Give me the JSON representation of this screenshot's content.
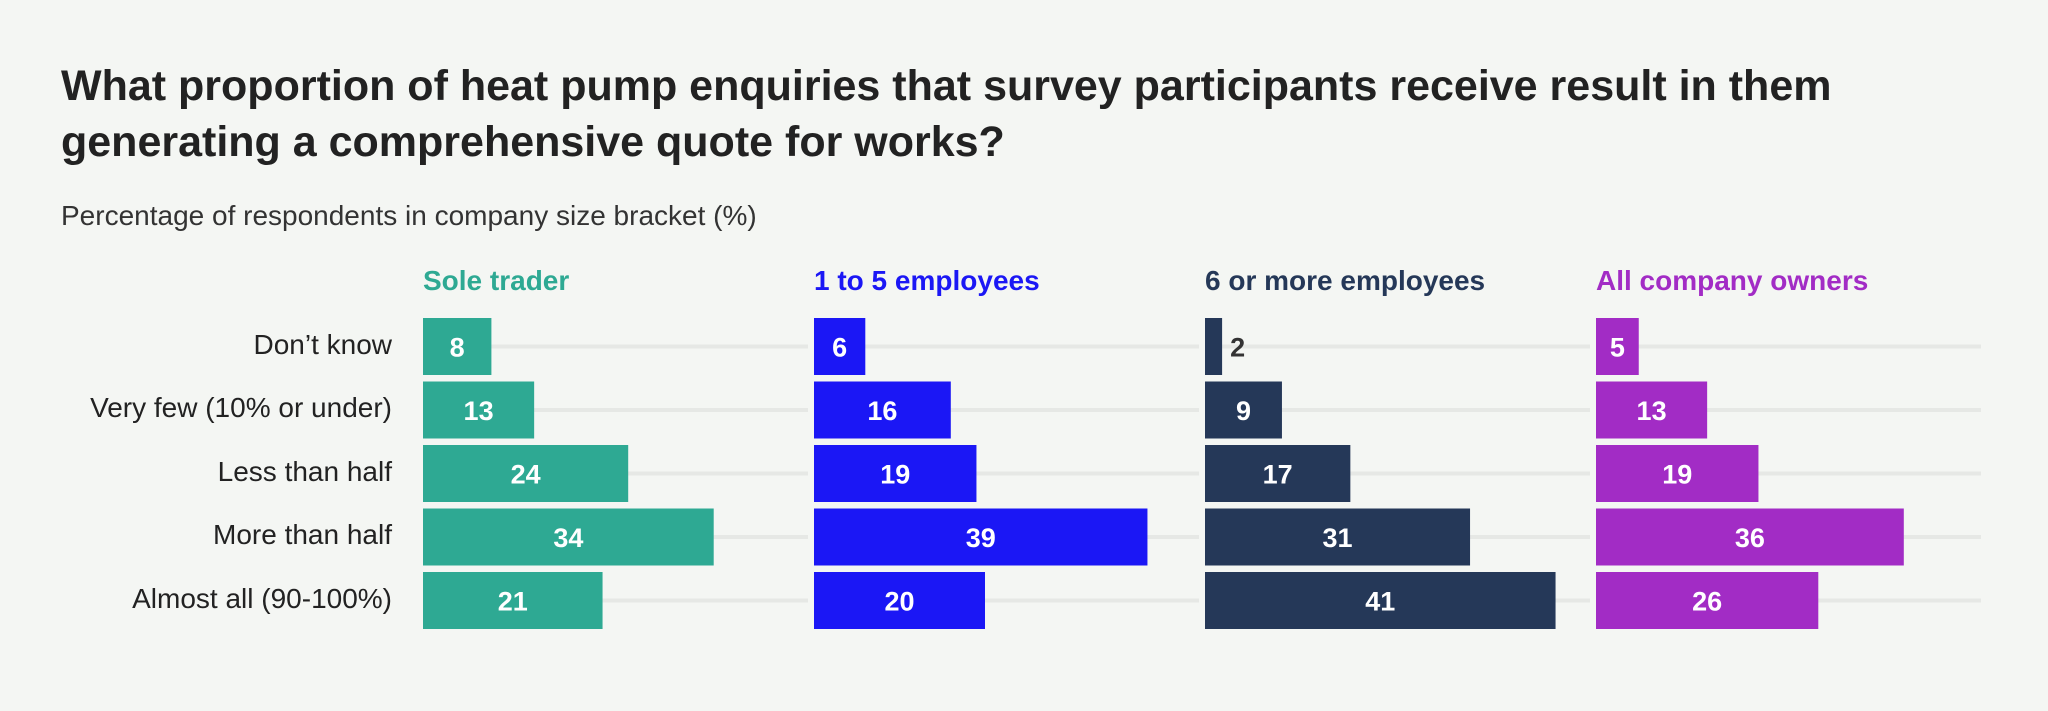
{
  "chart_data": {
    "type": "bar",
    "title": "What proportion of heat pump enquiries that survey participants receive result in them generating a comprehensive quote for works?",
    "subtitle": "Percentage of respondents in company size bracket (%)",
    "categories": [
      "Don’t know",
      "Very few (10% or under)",
      "Less than half",
      "More than half",
      "Almost all (90-100%)"
    ],
    "series": [
      {
        "name": "Sole trader",
        "color": "#2ea993",
        "values": [
          8,
          13,
          24,
          34,
          21
        ]
      },
      {
        "name": "1 to 5 employees",
        "color": "#1b17f5",
        "values": [
          6,
          16,
          19,
          39,
          20
        ]
      },
      {
        "name": "6 or more employees",
        "color": "#253858",
        "values": [
          2,
          9,
          17,
          31,
          41
        ]
      },
      {
        "name": "All company owners",
        "color": "#a22cc5",
        "values": [
          5,
          13,
          19,
          36,
          26
        ]
      }
    ],
    "orientation": "horizontal",
    "layout": "small-multiples",
    "grid": true,
    "xlim": [
      0,
      45
    ]
  }
}
